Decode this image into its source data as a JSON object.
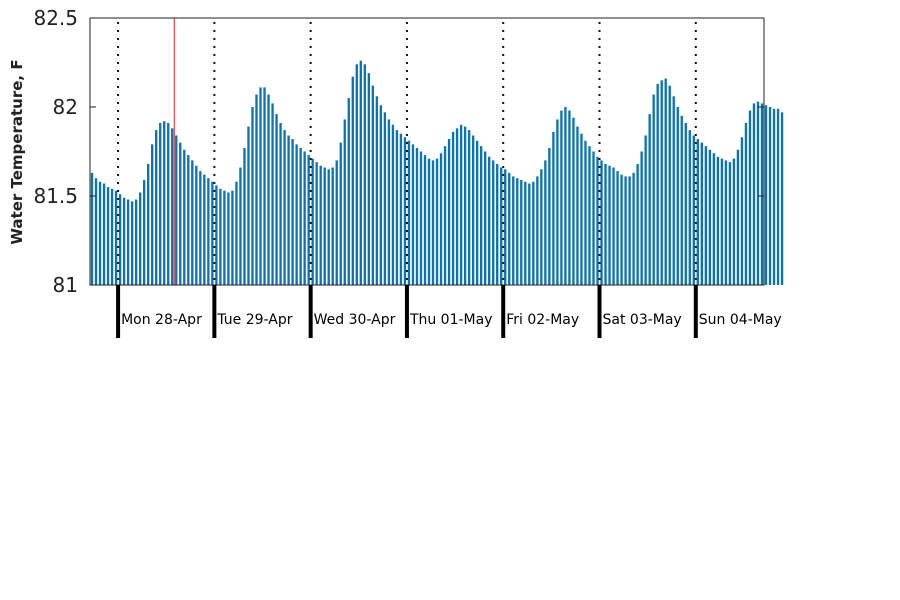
{
  "chart_data": {
    "type": "bar",
    "title": "",
    "xlabel": "",
    "ylabel": "Water Temperature, F",
    "ylim": [
      81,
      82.5
    ],
    "yticks": [
      81,
      81.5,
      82,
      82.5
    ],
    "ytick_labels": [
      "81",
      "81.5",
      "82",
      "82.5"
    ],
    "bar_color": "#0b72b3",
    "marker_color": "#e8201c",
    "x_start_hour": -7,
    "x_end_hour": 161,
    "marker_hour": 14,
    "days": [
      {
        "hour": 0,
        "label": "Mon 28-Apr"
      },
      {
        "hour": 24,
        "label": "Tue 29-Apr"
      },
      {
        "hour": 48,
        "label": "Wed 30-Apr"
      },
      {
        "hour": 72,
        "label": "Thu 01-May"
      },
      {
        "hour": 96,
        "label": "Fri 02-May"
      },
      {
        "hour": 120,
        "label": "Sat 03-May"
      },
      {
        "hour": 144,
        "label": "Sun 04-May"
      }
    ],
    "values": [
      81.63,
      81.6,
      81.58,
      81.57,
      81.55,
      81.54,
      81.53,
      81.51,
      81.49,
      81.48,
      81.47,
      81.48,
      81.52,
      81.59,
      81.68,
      81.79,
      81.87,
      81.91,
      81.92,
      81.91,
      81.88,
      81.84,
      81.8,
      81.76,
      81.73,
      81.7,
      81.67,
      81.64,
      81.62,
      81.6,
      81.58,
      81.56,
      81.54,
      81.53,
      81.52,
      81.53,
      81.58,
      81.66,
      81.77,
      81.89,
      82.0,
      82.07,
      82.11,
      82.11,
      82.07,
      82.02,
      81.96,
      81.91,
      81.87,
      81.84,
      81.82,
      81.79,
      81.77,
      81.75,
      81.73,
      81.71,
      81.69,
      81.67,
      81.66,
      81.65,
      81.66,
      81.7,
      81.8,
      81.93,
      82.05,
      82.17,
      82.24,
      82.26,
      82.24,
      82.19,
      82.12,
      82.06,
      82.01,
      81.97,
      81.93,
      81.9,
      81.87,
      81.85,
      81.83,
      81.81,
      81.79,
      81.77,
      81.75,
      81.73,
      81.71,
      81.7,
      81.71,
      81.74,
      81.78,
      81.82,
      81.86,
      81.88,
      81.9,
      81.89,
      81.87,
      81.84,
      81.81,
      81.78,
      81.75,
      81.72,
      81.7,
      81.68,
      81.66,
      81.65,
      81.63,
      81.61,
      81.6,
      81.59,
      81.58,
      81.57,
      81.58,
      81.61,
      81.65,
      81.7,
      81.77,
      81.86,
      81.93,
      81.98,
      82.0,
      81.98,
      81.94,
      81.89,
      81.85,
      81.81,
      81.78,
      81.75,
      81.72,
      81.7,
      81.68,
      81.67,
      81.66,
      81.64,
      81.62,
      81.61,
      81.61,
      81.63,
      81.68,
      81.75,
      81.84,
      81.96,
      82.07,
      82.13,
      82.15,
      82.16,
      82.12,
      82.06,
      82.0,
      81.95,
      81.91,
      81.87,
      81.84,
      81.82,
      81.8,
      81.78,
      81.76,
      81.74,
      81.72,
      81.71,
      81.7,
      81.69,
      81.71,
      81.76,
      81.83,
      81.91,
      81.98,
      82.02,
      82.03,
      82.02,
      82.01,
      82.0,
      81.99,
      81.99,
      81.97
    ]
  }
}
